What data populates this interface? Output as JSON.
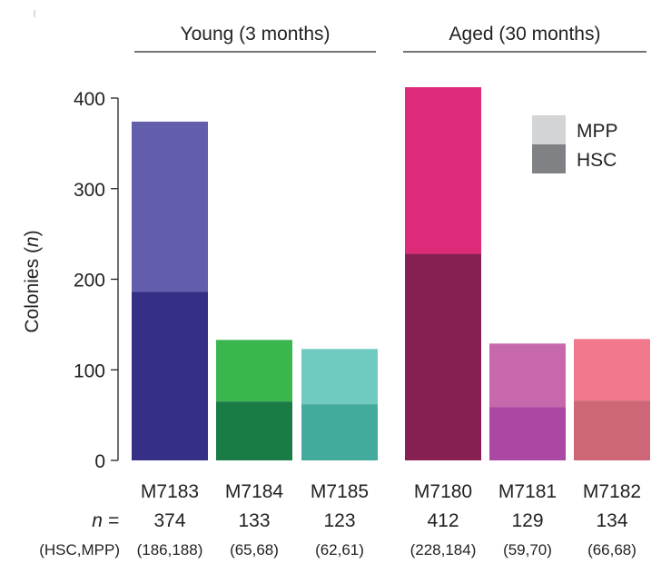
{
  "chart_data": {
    "type": "bar",
    "stacked": true,
    "ylabel": "Colonies (n)",
    "ylabel_main": "Colonies (",
    "ylabel_var": "n",
    "ylabel_close": ")",
    "ylim": [
      0,
      400
    ],
    "yticks": [
      0,
      100,
      200,
      300,
      400
    ],
    "groups": [
      {
        "label": "Young (3 months)",
        "categories": [
          "M7183",
          "M7184",
          "M7185"
        ]
      },
      {
        "label": "Aged (30 months)",
        "categories": [
          "M7180",
          "M7181",
          "M7182"
        ]
      }
    ],
    "categories": [
      "M7183",
      "M7184",
      "M7185",
      "M7180",
      "M7181",
      "M7182"
    ],
    "series": [
      {
        "name": "HSC",
        "values": [
          186,
          65,
          62,
          228,
          59,
          66
        ]
      },
      {
        "name": "MPP",
        "values": [
          188,
          68,
          61,
          184,
          70,
          68
        ]
      }
    ],
    "totals": [
      374,
      133,
      123,
      412,
      129,
      134
    ],
    "pair_labels": [
      "(186,188)",
      "(65,68)",
      "(62,61)",
      "(228,184)",
      "(59,70)",
      "(66,68)"
    ],
    "n_row_label": "n =",
    "pair_row_label": "(HSC,MPP)",
    "colors": {
      "HSC": [
        "#352f86",
        "#1a7c45",
        "#42ab9b",
        "#862053",
        "#aa48a4",
        "#cd6777"
      ],
      "MPP": [
        "#625eac",
        "#3bb64f",
        "#6fcbbf",
        "#dd2a79",
        "#c868ac",
        "#f1788d"
      ]
    },
    "legend": {
      "placement": "top-right",
      "items": [
        {
          "label": "MPP",
          "color": "#d3d4d6"
        },
        {
          "label": "HSC",
          "color": "#808184"
        }
      ]
    }
  }
}
